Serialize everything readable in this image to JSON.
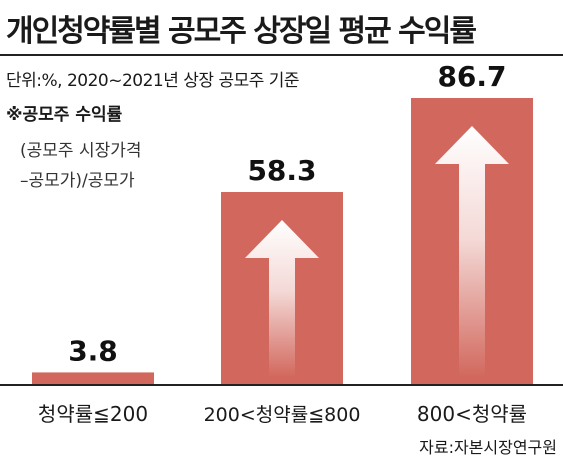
{
  "title": "개인청약률별 공모주 상장일 평균 수익률",
  "unit_note": "단위:%, 2020~2021년 상장 공모주 기준",
  "footnote": {
    "heading": "※공모주 수익률",
    "line1": "(공모주 시장가격",
    "line2": "–공모가)/공모가"
  },
  "source": "자료:자본시장연구원",
  "colors": {
    "bar": "#d2685d",
    "arrow": "#ffffff",
    "baseline": "#222222"
  },
  "chart_data": {
    "type": "bar",
    "categories": [
      "청약률≦200",
      "200<청약률≦800",
      "800<청약률"
    ],
    "values": [
      3.8,
      58.3,
      86.7
    ],
    "value_labels": [
      "3.8",
      "58.3",
      "86.7"
    ],
    "ylim": [
      0,
      100
    ]
  }
}
